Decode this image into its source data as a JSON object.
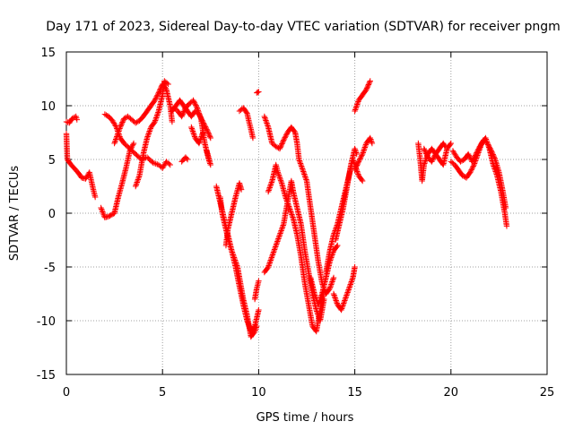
{
  "chart_data": {
    "type": "scatter",
    "title": "Day 171 of 2023, Sidereal Day-to-day VTEC variation (SDTVAR) for receiver pngm",
    "xlabel": "GPS time / hours",
    "ylabel": "SDTVAR / TECUs",
    "xlim": [
      0,
      25
    ],
    "ylim": [
      -15,
      15
    ],
    "xticks": [
      0,
      5,
      10,
      15,
      20,
      25
    ],
    "yticks": [
      -15,
      -10,
      -5,
      0,
      5,
      10,
      15
    ],
    "grid": true,
    "marker": "+",
    "color": "#ff0000",
    "series": [
      {
        "name": "s1",
        "points": [
          [
            0.0,
            8.5
          ],
          [
            0.15,
            8.4
          ],
          [
            0.3,
            8.8
          ],
          [
            0.5,
            9.0
          ],
          [
            0.55,
            8.7
          ]
        ]
      },
      {
        "name": "s2",
        "points": [
          [
            0.0,
            7.4
          ],
          [
            0.05,
            5.0
          ],
          [
            0.2,
            4.6
          ],
          [
            0.4,
            4.2
          ],
          [
            0.6,
            3.8
          ],
          [
            0.8,
            3.3
          ],
          [
            1.0,
            3.2
          ],
          [
            1.2,
            3.8
          ],
          [
            1.4,
            2.2
          ],
          [
            1.5,
            1.5
          ]
        ]
      },
      {
        "name": "s3",
        "points": [
          [
            1.8,
            0.5
          ],
          [
            2.0,
            -0.4
          ],
          [
            2.2,
            -0.3
          ],
          [
            2.5,
            0.0
          ],
          [
            2.7,
            1.5
          ],
          [
            2.9,
            2.8
          ],
          [
            3.1,
            4.2
          ],
          [
            3.3,
            5.8
          ],
          [
            3.5,
            6.5
          ]
        ]
      },
      {
        "name": "s4",
        "points": [
          [
            2.0,
            9.2
          ],
          [
            2.2,
            9.0
          ],
          [
            2.4,
            8.6
          ],
          [
            2.6,
            8.0
          ],
          [
            2.8,
            7.0
          ],
          [
            3.0,
            6.5
          ],
          [
            3.3,
            6.0
          ],
          [
            3.6,
            5.5
          ],
          [
            3.9,
            5.0
          ],
          [
            4.2,
            5.2
          ],
          [
            4.5,
            4.7
          ],
          [
            4.8,
            4.5
          ],
          [
            5.0,
            4.2
          ],
          [
            5.2,
            4.8
          ],
          [
            5.4,
            4.5
          ]
        ]
      },
      {
        "name": "s5",
        "points": [
          [
            2.5,
            6.5
          ],
          [
            2.6,
            7.0
          ],
          [
            2.8,
            8.0
          ],
          [
            3.0,
            8.8
          ],
          [
            3.2,
            9.0
          ],
          [
            3.4,
            8.7
          ],
          [
            3.6,
            8.4
          ],
          [
            3.8,
            8.6
          ],
          [
            4.0,
            9.0
          ],
          [
            4.2,
            9.5
          ],
          [
            4.4,
            10.0
          ],
          [
            4.6,
            10.5
          ],
          [
            4.8,
            11.2
          ],
          [
            5.0,
            12.0
          ],
          [
            5.2,
            11.5
          ],
          [
            5.4,
            10.0
          ],
          [
            5.5,
            8.5
          ]
        ]
      },
      {
        "name": "s6",
        "points": [
          [
            3.6,
            2.5
          ],
          [
            3.8,
            3.5
          ],
          [
            4.0,
            5.5
          ],
          [
            4.2,
            7.0
          ],
          [
            4.4,
            8.0
          ],
          [
            4.6,
            8.5
          ],
          [
            4.8,
            9.5
          ],
          [
            5.0,
            11.0
          ],
          [
            5.1,
            12.3
          ],
          [
            5.3,
            12.0
          ]
        ]
      },
      {
        "name": "s7",
        "points": [
          [
            5.5,
            9.5
          ],
          [
            5.7,
            10.0
          ],
          [
            5.9,
            10.5
          ],
          [
            6.1,
            10.0
          ],
          [
            6.3,
            9.5
          ],
          [
            6.5,
            9.0
          ],
          [
            6.7,
            9.5
          ],
          [
            6.9,
            9.2
          ],
          [
            7.1,
            8.5
          ],
          [
            7.3,
            7.8
          ],
          [
            7.5,
            7.0
          ]
        ]
      },
      {
        "name": "s8",
        "points": [
          [
            5.6,
            9.8
          ],
          [
            5.8,
            9.5
          ],
          [
            6.0,
            9.0
          ],
          [
            6.2,
            9.8
          ],
          [
            6.4,
            10.2
          ],
          [
            6.6,
            10.5
          ],
          [
            6.8,
            9.8
          ],
          [
            7.0,
            8.8
          ],
          [
            7.2,
            6.5
          ],
          [
            7.4,
            5.0
          ],
          [
            7.5,
            4.5
          ],
          [
            7.3,
            5.8
          ]
        ]
      },
      {
        "name": "s9",
        "points": [
          [
            6.0,
            4.8
          ],
          [
            6.1,
            5.0
          ],
          [
            6.2,
            5.2
          ],
          [
            6.3,
            5.0
          ]
        ]
      },
      {
        "name": "s10",
        "points": [
          [
            6.5,
            8.0
          ],
          [
            6.7,
            7.0
          ],
          [
            6.9,
            6.5
          ],
          [
            7.1,
            7.5
          ]
        ]
      },
      {
        "name": "s11",
        "points": [
          [
            7.8,
            2.5
          ],
          [
            8.0,
            1.0
          ],
          [
            8.2,
            -0.5
          ],
          [
            8.4,
            -2.0
          ],
          [
            8.6,
            -3.5
          ],
          [
            8.8,
            -5.0
          ],
          [
            9.0,
            -6.8
          ],
          [
            9.2,
            -8.5
          ],
          [
            9.4,
            -10.0
          ],
          [
            9.6,
            -11.0
          ],
          [
            9.8,
            -10.5
          ],
          [
            10.0,
            -9.0
          ]
        ]
      },
      {
        "name": "s12",
        "points": [
          [
            8.0,
            1.5
          ],
          [
            8.1,
            0.0
          ],
          [
            8.3,
            -1.5
          ],
          [
            8.5,
            -3.0
          ],
          [
            8.7,
            -4.0
          ],
          [
            8.9,
            -5.0
          ],
          [
            9.0,
            -6.0
          ],
          [
            9.2,
            -8.0
          ],
          [
            9.4,
            -9.5
          ],
          [
            9.6,
            -11.5
          ],
          [
            9.8,
            -11.0
          ],
          [
            9.9,
            -10.5
          ]
        ]
      },
      {
        "name": "s13",
        "points": [
          [
            8.3,
            -3.0
          ],
          [
            8.4,
            -1.5
          ],
          [
            8.6,
            0.0
          ],
          [
            8.8,
            1.5
          ],
          [
            9.0,
            2.8
          ],
          [
            9.1,
            2.2
          ]
        ]
      },
      {
        "name": "s14",
        "points": [
          [
            9.0,
            9.5
          ],
          [
            9.2,
            9.8
          ],
          [
            9.4,
            9.3
          ],
          [
            9.5,
            8.5
          ],
          [
            9.6,
            7.8
          ],
          [
            9.7,
            7.0
          ]
        ]
      },
      {
        "name": "s15",
        "points": [
          [
            9.8,
            -8.0
          ],
          [
            9.9,
            -7.0
          ],
          [
            10.0,
            -6.3
          ]
        ]
      },
      {
        "name": "s16",
        "points": [
          [
            9.9,
            11.2
          ],
          [
            10.0,
            11.3
          ]
        ]
      },
      {
        "name": "s17",
        "points": [
          [
            10.3,
            9.0
          ],
          [
            10.5,
            8.0
          ],
          [
            10.7,
            6.5
          ],
          [
            10.9,
            6.2
          ],
          [
            11.1,
            6.0
          ],
          [
            11.3,
            6.8
          ],
          [
            11.5,
            7.5
          ],
          [
            11.7,
            8.0
          ],
          [
            11.9,
            7.5
          ],
          [
            12.0,
            6.5
          ],
          [
            12.1,
            5.0
          ],
          [
            12.3,
            4.0
          ],
          [
            12.5,
            3.0
          ],
          [
            12.7,
            0.5
          ],
          [
            12.9,
            -2.0
          ],
          [
            13.1,
            -4.5
          ],
          [
            13.3,
            -6.5
          ],
          [
            13.5,
            -7.5
          ],
          [
            13.7,
            -7.0
          ],
          [
            13.9,
            -6.0
          ]
        ]
      },
      {
        "name": "s18",
        "points": [
          [
            10.3,
            -5.5
          ],
          [
            10.5,
            -5.0
          ],
          [
            10.7,
            -4.0
          ],
          [
            10.9,
            -3.0
          ],
          [
            11.1,
            -2.0
          ],
          [
            11.3,
            -1.0
          ],
          [
            11.5,
            1.0
          ],
          [
            11.7,
            3.0
          ],
          [
            11.8,
            2.0
          ],
          [
            12.0,
            0.5
          ],
          [
            12.2,
            -1.0
          ],
          [
            12.4,
            -3.5
          ],
          [
            12.6,
            -5.5
          ],
          [
            12.8,
            -7.5
          ],
          [
            13.0,
            -9.0
          ],
          [
            13.2,
            -10.0
          ],
          [
            13.4,
            -8.0
          ]
        ]
      },
      {
        "name": "s19",
        "points": [
          [
            10.5,
            2.0
          ],
          [
            10.7,
            3.0
          ],
          [
            10.9,
            4.5
          ],
          [
            11.0,
            3.8
          ],
          [
            11.2,
            2.8
          ],
          [
            11.4,
            1.5
          ],
          [
            11.6,
            0.5
          ],
          [
            11.8,
            -0.5
          ],
          [
            12.0,
            -2.0
          ],
          [
            12.2,
            -4.0
          ],
          [
            12.4,
            -6.5
          ],
          [
            12.6,
            -8.5
          ],
          [
            12.8,
            -10.5
          ],
          [
            13.0,
            -11.0
          ],
          [
            13.2,
            -9.0
          ],
          [
            13.4,
            -7.0
          ]
        ]
      },
      {
        "name": "s20",
        "points": [
          [
            12.7,
            -6.0
          ],
          [
            12.9,
            -7.5
          ],
          [
            13.1,
            -8.5
          ],
          [
            13.3,
            -7.5
          ],
          [
            13.5,
            -6.0
          ],
          [
            13.7,
            -4.5
          ],
          [
            13.9,
            -3.5
          ],
          [
            14.1,
            -3.0
          ]
        ]
      },
      {
        "name": "s21",
        "points": [
          [
            13.5,
            -5.5
          ],
          [
            13.7,
            -3.5
          ],
          [
            13.9,
            -2.0
          ],
          [
            14.1,
            -1.0
          ],
          [
            14.3,
            0.5
          ],
          [
            14.5,
            2.0
          ],
          [
            14.7,
            3.5
          ],
          [
            14.9,
            5.0
          ],
          [
            15.0,
            4.5
          ],
          [
            15.2,
            3.5
          ],
          [
            15.4,
            3.0
          ]
        ]
      },
      {
        "name": "s22",
        "points": [
          [
            13.9,
            -7.5
          ],
          [
            14.1,
            -8.5
          ],
          [
            14.3,
            -9.0
          ],
          [
            14.5,
            -8.0
          ],
          [
            14.7,
            -7.0
          ],
          [
            14.9,
            -6.0
          ],
          [
            15.0,
            -5.0
          ]
        ]
      },
      {
        "name": "s23",
        "points": [
          [
            14.0,
            -2.5
          ],
          [
            14.2,
            -1.0
          ],
          [
            14.4,
            0.5
          ],
          [
            14.6,
            2.5
          ],
          [
            14.8,
            4.5
          ],
          [
            15.0,
            6.0
          ],
          [
            15.1,
            5.5
          ]
        ]
      },
      {
        "name": "s24",
        "points": [
          [
            15.0,
            4.0
          ],
          [
            15.2,
            4.8
          ],
          [
            15.4,
            5.5
          ],
          [
            15.6,
            6.5
          ],
          [
            15.8,
            7.0
          ],
          [
            15.9,
            6.5
          ]
        ]
      },
      {
        "name": "s25",
        "points": [
          [
            15.0,
            9.5
          ],
          [
            15.2,
            10.5
          ],
          [
            15.4,
            11.0
          ],
          [
            15.6,
            11.5
          ],
          [
            15.8,
            12.3
          ]
        ]
      },
      {
        "name": "s26",
        "points": [
          [
            18.3,
            6.5
          ],
          [
            18.4,
            5.0
          ],
          [
            18.5,
            3.0
          ],
          [
            18.6,
            4.5
          ],
          [
            18.8,
            5.5
          ],
          [
            19.0,
            6.0
          ],
          [
            19.2,
            5.5
          ],
          [
            19.4,
            5.0
          ],
          [
            19.6,
            4.5
          ],
          [
            19.8,
            6.0
          ],
          [
            20.0,
            6.5
          ]
        ]
      },
      {
        "name": "s27",
        "points": [
          [
            18.6,
            6.0
          ],
          [
            18.8,
            5.2
          ],
          [
            19.0,
            4.8
          ],
          [
            19.2,
            5.5
          ],
          [
            19.4,
            6.0
          ],
          [
            19.6,
            6.5
          ],
          [
            19.7,
            6.2
          ]
        ]
      },
      {
        "name": "s28",
        "points": [
          [
            20.0,
            4.8
          ],
          [
            20.2,
            4.5
          ],
          [
            20.4,
            4.0
          ],
          [
            20.6,
            3.5
          ],
          [
            20.8,
            3.3
          ],
          [
            21.0,
            3.8
          ],
          [
            21.2,
            4.5
          ],
          [
            21.4,
            5.5
          ],
          [
            21.6,
            6.5
          ],
          [
            21.8,
            7.0
          ],
          [
            22.0,
            6.0
          ],
          [
            22.2,
            4.5
          ],
          [
            22.4,
            3.5
          ],
          [
            22.6,
            2.0
          ],
          [
            22.8,
            0.0
          ],
          [
            22.9,
            -1.2
          ]
        ]
      },
      {
        "name": "s29",
        "points": [
          [
            20.1,
            5.8
          ],
          [
            20.3,
            5.2
          ],
          [
            20.5,
            4.8
          ],
          [
            20.7,
            5.0
          ],
          [
            20.9,
            5.5
          ],
          [
            21.1,
            4.8
          ],
          [
            21.3,
            5.5
          ],
          [
            21.5,
            6.2
          ],
          [
            21.7,
            6.8
          ],
          [
            21.9,
            6.5
          ],
          [
            22.1,
            5.8
          ],
          [
            22.3,
            5.0
          ],
          [
            22.5,
            3.8
          ],
          [
            22.7,
            2.0
          ],
          [
            22.85,
            0.5
          ]
        ]
      }
    ]
  }
}
